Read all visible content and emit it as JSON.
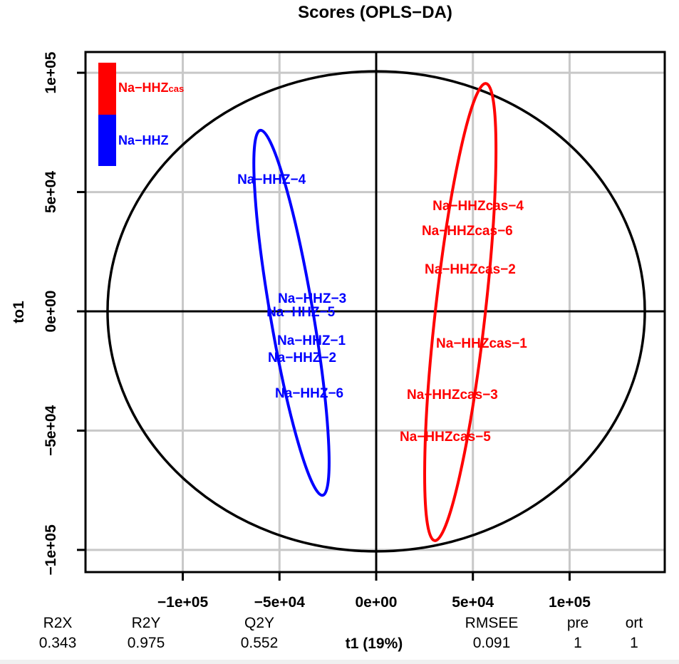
{
  "title": "Scores (OPLS−DA)",
  "legend": {
    "items": [
      {
        "base": "Na−HHZ",
        "suffix": "cas",
        "color": "#FF0000"
      },
      {
        "base": "Na−HHZ",
        "suffix": "",
        "color": "#0000FF"
      }
    ]
  },
  "chart_data": {
    "type": "scatter",
    "title": "Scores (OPLS−DA)",
    "xlabel": "t1 (19%)",
    "ylabel": "to1",
    "xlim": [
      -150300,
      149200
    ],
    "ylim": [
      -109300,
      108700
    ],
    "grid": true,
    "grid_color": "#C8C8C8",
    "x_ticks": {
      "values": [
        -100000,
        -50000,
        0,
        50000,
        100000
      ],
      "labels": [
        "−1e+05",
        "−5e+04",
        "0e+00",
        "5e+04",
        "1e+05"
      ]
    },
    "y_ticks": {
      "values": [
        -100000,
        -50000,
        0,
        50000,
        100000
      ],
      "labels": [
        "−1e+05",
        "−5e+04",
        "0e+00",
        "5e+04",
        "1e+05"
      ]
    },
    "series": [
      {
        "name": "Na−HHZcas",
        "color": "#FF0000",
        "points": [
          {
            "label": "Na−HHZcas−4",
            "x": 52700,
            "y": 44500
          },
          {
            "label": "Na−HHZcas−6",
            "x": 47100,
            "y": 34000
          },
          {
            "label": "Na−HHZcas−2",
            "x": 48600,
            "y": 17900
          },
          {
            "label": "Na−HHZcas−1",
            "x": 54500,
            "y": -13100
          },
          {
            "label": "Na−HHZcas−3",
            "x": 39400,
            "y": -34600
          },
          {
            "label": "Na−HHZcas−5",
            "x": 35700,
            "y": -52200
          }
        ]
      },
      {
        "name": "Na−HHZ",
        "color": "#0000FF",
        "points": [
          {
            "label": "Na−HHZ−4",
            "x": -54100,
            "y": 55500
          },
          {
            "label": "Na−HHZ−3",
            "x": -33100,
            "y": 5700
          },
          {
            "label": "Na−HHZ−5",
            "x": -39000,
            "y": 0
          },
          {
            "label": "Na−HHZ−1",
            "x": -33500,
            "y": -12000
          },
          {
            "label": "Na−HHZ−2",
            "x": -38300,
            "y": -19100
          },
          {
            "label": "Na−HHZ−6",
            "x": -34600,
            "y": -34000
          }
        ]
      }
    ],
    "ellipses": [
      {
        "name": "hotelling",
        "color": "#000000",
        "cx": 0,
        "cy": 0,
        "rx": 138900,
        "ry": 100600,
        "rotation_deg": 0
      },
      {
        "name": "Na−HHZ",
        "color": "#0000FF",
        "cx": -43800,
        "cy": -600,
        "rx": 11050,
        "ry": 77600,
        "rotation_deg": -9.7
      },
      {
        "name": "Na−HHZcas",
        "color": "#FF0000",
        "cx": 43500,
        "cy": -300,
        "rx": 12900,
        "ry": 96400,
        "rotation_deg": 6.4
      }
    ]
  },
  "diagnostics": [
    {
      "label": "R2X",
      "value": "0.343"
    },
    {
      "label": "R2Y",
      "value": "0.975"
    },
    {
      "label": "Q2Y",
      "value": "0.552"
    },
    {
      "label": "RMSEE",
      "value": "0.091"
    },
    {
      "label": "pre",
      "value": "1"
    },
    {
      "label": "ort",
      "value": "1"
    }
  ]
}
